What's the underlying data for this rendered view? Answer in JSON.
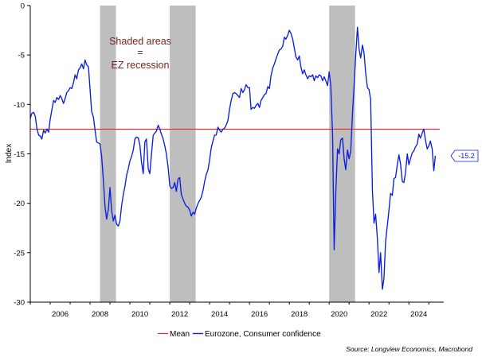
{
  "chart_data": {
    "type": "line",
    "title": "",
    "xlabel": "",
    "ylabel": "Index",
    "xlim": [
      2005.0,
      2025.75
    ],
    "ylim": [
      -30,
      0
    ],
    "x_ticks": [
      "2006",
      "2008",
      "2010",
      "2012",
      "2014",
      "2016",
      "2018",
      "2020",
      "2022",
      "2024"
    ],
    "y_ticks": [
      "0",
      "-5",
      "-10",
      "-15",
      "-20",
      "-25",
      "-30"
    ],
    "grid": false,
    "legend_position": "bottom",
    "annotation": {
      "line1": "Shaded areas",
      "line2": "=",
      "line3": "EZ recession",
      "color": "#7a1f1f"
    },
    "last_value_label": "-15.2",
    "recessions": [
      {
        "start": 2008.5,
        "end": 2009.3
      },
      {
        "start": 2012.0,
        "end": 2013.3
      },
      {
        "start": 2020.0,
        "end": 2021.3
      }
    ],
    "mean": {
      "name": "Mean",
      "value": -12.5,
      "color": "#e8262b"
    },
    "series": [
      {
        "name": "Eurozone, Consumer confidence",
        "color": "#0a1ee0",
        "points": [
          [
            2005.0,
            -11.4
          ],
          [
            2005.08,
            -10.9
          ],
          [
            2005.17,
            -10.8
          ],
          [
            2005.25,
            -11.2
          ],
          [
            2005.33,
            -12.4
          ],
          [
            2005.42,
            -13.1
          ],
          [
            2005.5,
            -13.2
          ],
          [
            2005.58,
            -13.5
          ],
          [
            2005.67,
            -12.6
          ],
          [
            2005.75,
            -12.9
          ],
          [
            2005.83,
            -12.5
          ],
          [
            2005.92,
            -12.8
          ],
          [
            2006.0,
            -11.5
          ],
          [
            2006.08,
            -10.6
          ],
          [
            2006.17,
            -9.6
          ],
          [
            2006.25,
            -9.8
          ],
          [
            2006.33,
            -9.3
          ],
          [
            2006.42,
            -9.5
          ],
          [
            2006.5,
            -9.1
          ],
          [
            2006.58,
            -9.4
          ],
          [
            2006.67,
            -9.9
          ],
          [
            2006.75,
            -9.4
          ],
          [
            2006.83,
            -8.8
          ],
          [
            2006.92,
            -8.6
          ],
          [
            2007.0,
            -8.3
          ],
          [
            2007.08,
            -8.4
          ],
          [
            2007.17,
            -7.8
          ],
          [
            2007.25,
            -7.0
          ],
          [
            2007.33,
            -7.4
          ],
          [
            2007.42,
            -6.5
          ],
          [
            2007.5,
            -6.3
          ],
          [
            2007.58,
            -5.9
          ],
          [
            2007.67,
            -6.4
          ],
          [
            2007.75,
            -5.5
          ],
          [
            2007.83,
            -6.0
          ],
          [
            2007.92,
            -6.2
          ],
          [
            2008.0,
            -8.5
          ],
          [
            2008.08,
            -10.7
          ],
          [
            2008.17,
            -11.3
          ],
          [
            2008.25,
            -12.6
          ],
          [
            2008.33,
            -13.8
          ],
          [
            2008.42,
            -13.9
          ],
          [
            2008.5,
            -14.0
          ],
          [
            2008.58,
            -15.2
          ],
          [
            2008.67,
            -17.7
          ],
          [
            2008.75,
            -20.3
          ],
          [
            2008.83,
            -21.6
          ],
          [
            2008.92,
            -20.6
          ],
          [
            2009.0,
            -18.4
          ],
          [
            2009.08,
            -20.7
          ],
          [
            2009.17,
            -21.8
          ],
          [
            2009.25,
            -21.2
          ],
          [
            2009.33,
            -22.1
          ],
          [
            2009.42,
            -22.3
          ],
          [
            2009.5,
            -21.8
          ],
          [
            2009.58,
            -20.3
          ],
          [
            2009.67,
            -19.1
          ],
          [
            2009.75,
            -18.3
          ],
          [
            2009.83,
            -17.2
          ],
          [
            2009.92,
            -16.5
          ],
          [
            2010.0,
            -15.7
          ],
          [
            2010.08,
            -15.3
          ],
          [
            2010.17,
            -14.6
          ],
          [
            2010.25,
            -13.5
          ],
          [
            2010.33,
            -13.3
          ],
          [
            2010.42,
            -13.4
          ],
          [
            2010.5,
            -14.1
          ],
          [
            2010.58,
            -15.8
          ],
          [
            2010.67,
            -17.0
          ],
          [
            2010.75,
            -13.8
          ],
          [
            2010.83,
            -13.5
          ],
          [
            2010.92,
            -16.5
          ],
          [
            2011.0,
            -17.0
          ],
          [
            2011.08,
            -15.1
          ],
          [
            2011.17,
            -13.1
          ],
          [
            2011.25,
            -12.9
          ],
          [
            2011.33,
            -12.7
          ],
          [
            2011.42,
            -12.1
          ],
          [
            2011.5,
            -12.5
          ],
          [
            2011.58,
            -13.0
          ],
          [
            2011.67,
            -13.5
          ],
          [
            2011.75,
            -14.2
          ],
          [
            2011.83,
            -15.0
          ],
          [
            2011.92,
            -16.4
          ],
          [
            2012.0,
            -18.2
          ],
          [
            2012.08,
            -18.5
          ],
          [
            2012.17,
            -18.4
          ],
          [
            2012.25,
            -17.9
          ],
          [
            2012.33,
            -18.8
          ],
          [
            2012.42,
            -17.5
          ],
          [
            2012.5,
            -17.4
          ],
          [
            2012.58,
            -19.1
          ],
          [
            2012.67,
            -19.6
          ],
          [
            2012.75,
            -20.0
          ],
          [
            2012.83,
            -20.3
          ],
          [
            2012.92,
            -20.4
          ],
          [
            2013.0,
            -20.7
          ],
          [
            2013.08,
            -21.3
          ],
          [
            2013.17,
            -20.9
          ],
          [
            2013.25,
            -21.1
          ],
          [
            2013.33,
            -20.5
          ],
          [
            2013.42,
            -20.0
          ],
          [
            2013.5,
            -19.7
          ],
          [
            2013.58,
            -19.4
          ],
          [
            2013.67,
            -18.7
          ],
          [
            2013.75,
            -17.8
          ],
          [
            2013.83,
            -17.1
          ],
          [
            2013.92,
            -16.6
          ],
          [
            2014.0,
            -15.6
          ],
          [
            2014.08,
            -14.4
          ],
          [
            2014.17,
            -13.7
          ],
          [
            2014.25,
            -13.1
          ],
          [
            2014.33,
            -13.1
          ],
          [
            2014.42,
            -12.3
          ],
          [
            2014.5,
            -12.6
          ],
          [
            2014.58,
            -12.8
          ],
          [
            2014.67,
            -12.5
          ],
          [
            2014.75,
            -12.4
          ],
          [
            2014.83,
            -12.1
          ],
          [
            2014.92,
            -11.6
          ],
          [
            2015.0,
            -10.5
          ],
          [
            2015.08,
            -9.6
          ],
          [
            2015.17,
            -8.9
          ],
          [
            2015.25,
            -8.8
          ],
          [
            2015.33,
            -8.9
          ],
          [
            2015.42,
            -9.1
          ],
          [
            2015.5,
            -9.3
          ],
          [
            2015.58,
            -8.4
          ],
          [
            2015.67,
            -8.8
          ],
          [
            2015.75,
            -8.5
          ],
          [
            2015.83,
            -8.0
          ],
          [
            2015.92,
            -8.3
          ],
          [
            2016.0,
            -8.3
          ],
          [
            2016.08,
            -10.5
          ],
          [
            2016.17,
            -10.3
          ],
          [
            2016.25,
            -10.4
          ],
          [
            2016.33,
            -10.1
          ],
          [
            2016.42,
            -9.9
          ],
          [
            2016.5,
            -10.3
          ],
          [
            2016.58,
            -9.6
          ],
          [
            2016.67,
            -9.3
          ],
          [
            2016.75,
            -9.0
          ],
          [
            2016.83,
            -8.9
          ],
          [
            2016.92,
            -8.2
          ],
          [
            2017.0,
            -8.4
          ],
          [
            2017.08,
            -7.1
          ],
          [
            2017.17,
            -6.3
          ],
          [
            2017.25,
            -5.9
          ],
          [
            2017.33,
            -5.4
          ],
          [
            2017.42,
            -4.9
          ],
          [
            2017.5,
            -4.5
          ],
          [
            2017.58,
            -4.4
          ],
          [
            2017.67,
            -4.1
          ],
          [
            2017.75,
            -3.2
          ],
          [
            2017.83,
            -3.4
          ],
          [
            2017.92,
            -3.0
          ],
          [
            2018.0,
            -2.5
          ],
          [
            2018.08,
            -2.8
          ],
          [
            2018.17,
            -3.4
          ],
          [
            2018.25,
            -4.3
          ],
          [
            2018.33,
            -5.2
          ],
          [
            2018.42,
            -5.5
          ],
          [
            2018.5,
            -5.1
          ],
          [
            2018.58,
            -6.2
          ],
          [
            2018.67,
            -6.9
          ],
          [
            2018.75,
            -6.5
          ],
          [
            2018.83,
            -7.0
          ],
          [
            2018.92,
            -7.4
          ],
          [
            2019.0,
            -7.1
          ],
          [
            2019.08,
            -7.2
          ],
          [
            2019.17,
            -7.0
          ],
          [
            2019.25,
            -7.6
          ],
          [
            2019.33,
            -7.1
          ],
          [
            2019.42,
            -7.3
          ],
          [
            2019.5,
            -7.0
          ],
          [
            2019.58,
            -7.1
          ],
          [
            2019.67,
            -7.6
          ],
          [
            2019.75,
            -7.2
          ],
          [
            2019.83,
            -7.6
          ],
          [
            2019.92,
            -8.1
          ],
          [
            2020.0,
            -6.7
          ],
          [
            2020.08,
            -8.1
          ],
          [
            2020.17,
            -13.0
          ],
          [
            2020.25,
            -24.7
          ],
          [
            2020.33,
            -19.0
          ],
          [
            2020.42,
            -14.5
          ],
          [
            2020.5,
            -15.0
          ],
          [
            2020.58,
            -13.6
          ],
          [
            2020.67,
            -13.4
          ],
          [
            2020.75,
            -15.5
          ],
          [
            2020.83,
            -16.6
          ],
          [
            2020.92,
            -14.6
          ],
          [
            2021.0,
            -15.5
          ],
          [
            2021.08,
            -14.8
          ],
          [
            2021.17,
            -10.9
          ],
          [
            2021.25,
            -8.1
          ],
          [
            2021.33,
            -5.1
          ],
          [
            2021.42,
            -2.2
          ],
          [
            2021.5,
            -4.4
          ],
          [
            2021.58,
            -5.3
          ],
          [
            2021.67,
            -4.0
          ],
          [
            2021.75,
            -4.8
          ],
          [
            2021.83,
            -6.8
          ],
          [
            2021.92,
            -8.3
          ],
          [
            2022.0,
            -8.5
          ],
          [
            2022.08,
            -9.5
          ],
          [
            2022.17,
            -18.7
          ],
          [
            2022.25,
            -22.0
          ],
          [
            2022.33,
            -21.1
          ],
          [
            2022.42,
            -23.6
          ],
          [
            2022.5,
            -27.0
          ],
          [
            2022.58,
            -25.0
          ],
          [
            2022.67,
            -28.7
          ],
          [
            2022.75,
            -27.6
          ],
          [
            2022.83,
            -23.9
          ],
          [
            2022.92,
            -22.2
          ],
          [
            2023.0,
            -20.7
          ],
          [
            2023.08,
            -19.0
          ],
          [
            2023.17,
            -19.2
          ],
          [
            2023.25,
            -17.5
          ],
          [
            2023.33,
            -17.4
          ],
          [
            2023.42,
            -16.1
          ],
          [
            2023.5,
            -15.1
          ],
          [
            2023.58,
            -16.0
          ],
          [
            2023.67,
            -17.8
          ],
          [
            2023.75,
            -17.9
          ],
          [
            2023.83,
            -16.9
          ],
          [
            2023.92,
            -15.0
          ],
          [
            2024.0,
            -16.1
          ],
          [
            2024.08,
            -15.5
          ],
          [
            2024.17,
            -14.9
          ],
          [
            2024.25,
            -14.7
          ],
          [
            2024.33,
            -14.3
          ],
          [
            2024.42,
            -14.0
          ],
          [
            2024.5,
            -13.0
          ],
          [
            2024.58,
            -13.4
          ],
          [
            2024.67,
            -12.9
          ],
          [
            2024.75,
            -12.5
          ],
          [
            2024.83,
            -13.6
          ],
          [
            2024.92,
            -14.5
          ],
          [
            2025.0,
            -14.2
          ],
          [
            2025.08,
            -13.7
          ],
          [
            2025.17,
            -14.5
          ],
          [
            2025.25,
            -16.7
          ],
          [
            2025.33,
            -15.2
          ]
        ]
      }
    ]
  },
  "legend": {
    "mean_label": "Mean",
    "series_label": "Eurozone, Consumer confidence"
  },
  "source_text": "Source: Longview Economics, Macrobond"
}
